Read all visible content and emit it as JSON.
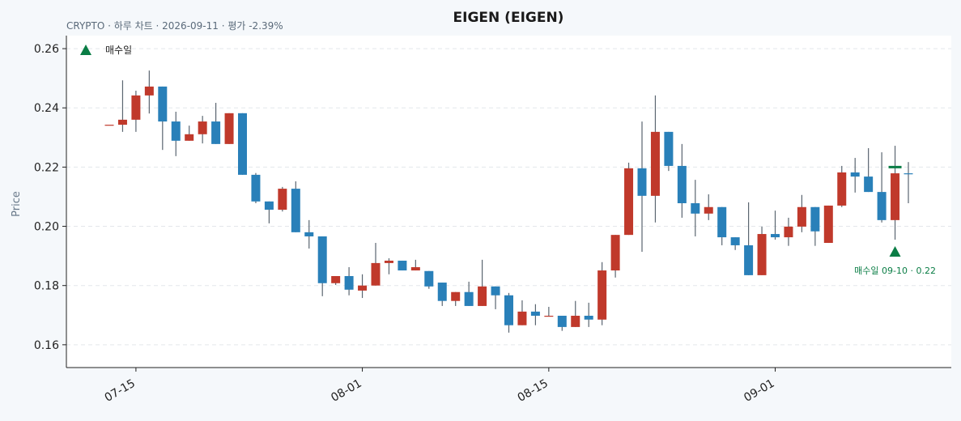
{
  "chart_data": {
    "type": "candlestick",
    "title": "EIGEN (EIGEN)",
    "subtitle": "CRYPTO · 하루 차트 · 2026-09-11 · 평가 -2.39%",
    "ylabel": "Price",
    "x": [
      "07-13",
      "07-14",
      "07-15",
      "07-16",
      "07-17",
      "07-18",
      "07-19",
      "07-20",
      "07-21",
      "07-22",
      "07-23",
      "07-24",
      "07-25",
      "07-26",
      "07-27",
      "07-28",
      "07-29",
      "07-30",
      "07-31",
      "08-01",
      "08-02",
      "08-03",
      "08-04",
      "08-05",
      "08-06",
      "08-07",
      "08-08",
      "08-09",
      "08-10",
      "08-11",
      "08-12",
      "08-13",
      "08-14",
      "08-15",
      "08-16",
      "08-17",
      "08-18",
      "08-19",
      "08-20",
      "08-21",
      "08-22",
      "08-23",
      "08-24",
      "08-25",
      "08-26",
      "08-27",
      "08-28",
      "08-29",
      "08-30",
      "08-31",
      "09-01",
      "09-02",
      "09-03",
      "09-04",
      "09-05",
      "09-06",
      "09-07",
      "09-08",
      "09-09",
      "09-10",
      "09-11"
    ],
    "open": [
      0.2343,
      0.2343,
      0.236,
      0.2442,
      0.2472,
      0.2354,
      0.2289,
      0.2311,
      0.2354,
      0.2278,
      0.2382,
      0.2174,
      0.2084,
      0.2056,
      0.2127,
      0.198,
      0.1966,
      0.1808,
      0.1832,
      0.1783,
      0.18,
      0.1876,
      0.1884,
      0.1851,
      0.1849,
      0.181,
      0.1748,
      0.1778,
      0.1731,
      0.1797,
      0.1767,
      0.1666,
      0.1712,
      0.1698,
      0.1698,
      0.166,
      0.1698,
      0.1685,
      0.1851,
      0.1971,
      0.2196,
      0.2103,
      0.2319,
      0.2204,
      0.2078,
      0.2043,
      0.2065,
      0.1963,
      0.1936,
      0.1835,
      0.1974,
      0.1963,
      0.1999,
      0.2065,
      0.1944,
      0.207,
      0.2182,
      0.2168,
      0.2116,
      0.2021,
      0.2179
    ],
    "high": [
      0.2343,
      0.2493,
      0.2458,
      0.2526,
      0.2472,
      0.2387,
      0.234,
      0.2373,
      0.2417,
      0.2382,
      0.2382,
      0.218,
      0.2084,
      0.2133,
      0.2152,
      0.2021,
      0.1966,
      0.1832,
      0.1862,
      0.1838,
      0.1944,
      0.1892,
      0.1884,
      0.1887,
      0.1849,
      0.181,
      0.1778,
      0.1813,
      0.1887,
      0.1797,
      0.1775,
      0.175,
      0.1737,
      0.1728,
      0.1698,
      0.1748,
      0.1742,
      0.1879,
      0.1971,
      0.2215,
      0.2354,
      0.2442,
      0.2319,
      0.2278,
      0.2157,
      0.2108,
      0.2065,
      0.1963,
      0.2081,
      0.1999,
      0.2053,
      0.2029,
      0.2106,
      0.2065,
      0.207,
      0.2204,
      0.2231,
      0.2264,
      0.225,
      0.2272,
      0.2217
    ],
    "low": [
      0.2343,
      0.2319,
      0.2319,
      0.2381,
      0.2258,
      0.2237,
      0.2289,
      0.228,
      0.2278,
      0.2278,
      0.2174,
      0.2078,
      0.201,
      0.205,
      0.198,
      0.1925,
      0.1764,
      0.1802,
      0.1767,
      0.1758,
      0.18,
      0.1838,
      0.1851,
      0.1851,
      0.1789,
      0.1731,
      0.1731,
      0.1731,
      0.1731,
      0.172,
      0.1641,
      0.1666,
      0.1666,
      0.1698,
      0.1647,
      0.166,
      0.166,
      0.1666,
      0.1827,
      0.1971,
      0.1914,
      0.2013,
      0.2187,
      0.2029,
      0.1966,
      0.2021,
      0.1936,
      0.192,
      0.1835,
      0.1835,
      0.1955,
      0.1934,
      0.198,
      0.1934,
      0.1944,
      0.2065,
      0.2114,
      0.2116,
      0.2013,
      0.1955,
      0.2078
    ],
    "close": [
      0.2343,
      0.236,
      0.2442,
      0.2472,
      0.2354,
      0.2289,
      0.2311,
      0.2354,
      0.2278,
      0.2382,
      0.2174,
      0.2084,
      0.2056,
      0.2127,
      0.198,
      0.1966,
      0.1808,
      0.1832,
      0.1786,
      0.18,
      0.1876,
      0.1884,
      0.1851,
      0.1862,
      0.1797,
      0.1748,
      0.1778,
      0.1731,
      0.1797,
      0.1767,
      0.1666,
      0.1712,
      0.1698,
      0.1698,
      0.166,
      0.1698,
      0.1685,
      0.1851,
      0.1971,
      0.2196,
      0.2103,
      0.2319,
      0.2204,
      0.2078,
      0.2043,
      0.2065,
      0.1963,
      0.1936,
      0.1835,
      0.1974,
      0.1963,
      0.1999,
      0.2065,
      0.1983,
      0.207,
      0.2182,
      0.2168,
      0.2116,
      0.2021,
      0.2179,
      0.2176
    ],
    "up_color": "#c0392b",
    "down_color": "#2980b9",
    "ylim": [
      0.1523,
      0.2644
    ],
    "yticks": [
      {
        "value": 0.16,
        "label": "0.16"
      },
      {
        "value": 0.18,
        "label": "0.18"
      },
      {
        "value": 0.2,
        "label": "0.20"
      },
      {
        "value": 0.22,
        "label": "0.22"
      },
      {
        "value": 0.24,
        "label": "0.24"
      },
      {
        "value": 0.26,
        "label": "0.26"
      }
    ],
    "xticks": [
      "07-15",
      "08-01",
      "08-15",
      "09-01"
    ],
    "grid": true,
    "legend": {
      "position": "upper left",
      "entries": [
        "매수일"
      ]
    },
    "marker": {
      "x": "09-10",
      "price": 0.22,
      "label": "매수일 09-10 · 0.22",
      "color": "#0a7d45"
    }
  }
}
